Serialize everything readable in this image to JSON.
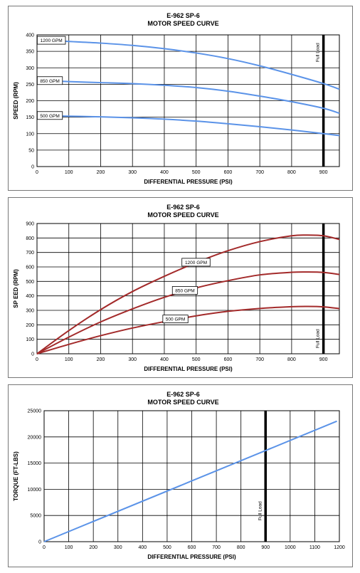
{
  "chart_data": [
    {
      "type": "line",
      "title": "E-962 SP-6",
      "subtitle": "MOTOR SPEED CURVE",
      "xlabel": "DIFFERENTIAL PRESSURE (PSI)",
      "ylabel": "SPEED (RPM)",
      "xlim": [
        0,
        950
      ],
      "ylim": [
        0,
        400
      ],
      "x_ticks": [
        0,
        100,
        200,
        300,
        400,
        500,
        600,
        700,
        800,
        900
      ],
      "y_ticks": [
        0,
        50,
        100,
        150,
        200,
        250,
        300,
        350,
        400
      ],
      "grid": true,
      "line_color": "#5b93e8",
      "x": [
        0,
        100,
        200,
        300,
        400,
        500,
        600,
        700,
        800,
        900,
        950
      ],
      "series": [
        {
          "name": "1200 GPM",
          "values": [
            385,
            380,
            375,
            368,
            358,
            345,
            328,
            306,
            280,
            252,
            235
          ]
        },
        {
          "name": "850 GPM",
          "values": [
            262,
            258,
            255,
            252,
            247,
            240,
            229,
            214,
            197,
            177,
            162
          ]
        },
        {
          "name": "500 GPM",
          "values": [
            155,
            153,
            151,
            148,
            144,
            138,
            130,
            121,
            111,
            100,
            94
          ]
        }
      ],
      "annotation": {
        "text": "Full Load",
        "x": 900
      }
    },
    {
      "type": "line",
      "title": "E-962 SP-6",
      "subtitle": "MOTOR SPEED CURVE",
      "xlabel": "DIFFERENTIAL PRESSURE (PSI)",
      "ylabel": "SP EED (RPM)",
      "xlim": [
        0,
        950
      ],
      "ylim": [
        0,
        900
      ],
      "x_ticks": [
        0,
        100,
        200,
        300,
        400,
        500,
        600,
        700,
        800,
        900
      ],
      "y_ticks": [
        0,
        100,
        200,
        300,
        400,
        500,
        600,
        700,
        800,
        900
      ],
      "grid": true,
      "line_color": "#a32a2a",
      "x": [
        0,
        100,
        200,
        300,
        400,
        500,
        600,
        700,
        800,
        850,
        900,
        950
      ],
      "series": [
        {
          "name": "1200 GPM",
          "values": [
            0,
            160,
            305,
            430,
            535,
            630,
            712,
            775,
            815,
            820,
            815,
            790
          ]
        },
        {
          "name": "850 GPM",
          "values": [
            0,
            115,
            220,
            310,
            390,
            455,
            505,
            545,
            563,
            565,
            562,
            548
          ]
        },
        {
          "name": "500 GPM",
          "values": [
            0,
            65,
            125,
            178,
            222,
            262,
            293,
            313,
            325,
            327,
            324,
            312
          ]
        }
      ],
      "annotation": {
        "text": "Full Load",
        "x": 900
      }
    },
    {
      "type": "line",
      "title": "E-962 SP-6",
      "subtitle": "MOTOR SPEED CURVE",
      "xlabel": "DIFFERENTIAL PRESSURE (PSI)",
      "ylabel": "TORQUE (FT-LBS)",
      "xlim": [
        0,
        1200
      ],
      "ylim": [
        0,
        25000
      ],
      "x_ticks": [
        0,
        100,
        200,
        300,
        400,
        500,
        600,
        700,
        800,
        900,
        1000,
        1100,
        1200
      ],
      "y_ticks": [
        0,
        5000,
        10000,
        15000,
        20000,
        25000
      ],
      "grid": true,
      "line_color": "#5b93e8",
      "x": [
        0,
        1190
      ],
      "series": [
        {
          "name": "",
          "values": [
            0,
            23000
          ]
        }
      ],
      "annotation": {
        "text": "Full Load",
        "x": 900
      }
    }
  ]
}
